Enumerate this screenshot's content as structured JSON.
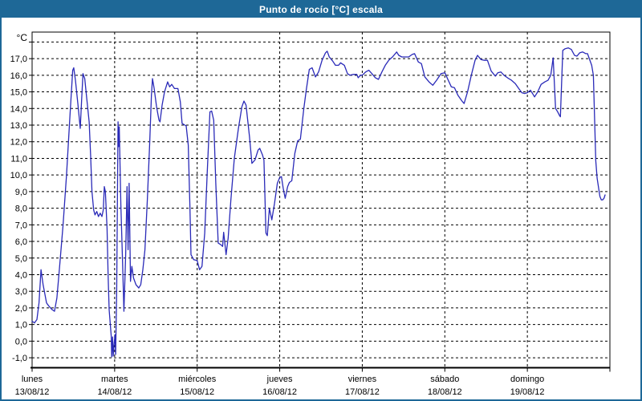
{
  "window": {
    "title": "Punto de rocío [°C] escala"
  },
  "theme": {
    "titlebar_bg": "#1e6897",
    "border_color": "#1e6897",
    "plot_bg": "#ffffff",
    "grid_color": "#000000",
    "axis_color": "#000000",
    "text_color": "#000000",
    "line_color": "#2a2ab8"
  },
  "chart_data": {
    "type": "line",
    "title": "Punto de rocío [°C] escala",
    "unit_label": "°C",
    "ylabel": "°C",
    "xlabel": "",
    "ylim": [
      -1,
      18
    ],
    "grid": "dashed",
    "legend": "none",
    "y_ticks": [
      {
        "value": 17,
        "label": "17,0"
      },
      {
        "value": 16,
        "label": "16,0"
      },
      {
        "value": 15,
        "label": "15,0"
      },
      {
        "value": 14,
        "label": "14,0"
      },
      {
        "value": 13,
        "label": "13,0"
      },
      {
        "value": 12,
        "label": "12,0"
      },
      {
        "value": 11,
        "label": "11,0"
      },
      {
        "value": 10,
        "label": "10,0"
      },
      {
        "value": 9,
        "label": "9,0"
      },
      {
        "value": 8,
        "label": "8,0"
      },
      {
        "value": 7,
        "label": "7,0"
      },
      {
        "value": 6,
        "label": "6,0"
      },
      {
        "value": 5,
        "label": "5,0"
      },
      {
        "value": 4,
        "label": "4,0"
      },
      {
        "value": 3,
        "label": "3,0"
      },
      {
        "value": 2,
        "label": "2,0"
      },
      {
        "value": 1,
        "label": "1,0"
      },
      {
        "value": 0,
        "label": "0,0"
      },
      {
        "value": -1,
        "label": "-1,0"
      }
    ],
    "x_days": [
      {
        "name": "lunes",
        "date": "13/08/12"
      },
      {
        "name": "martes",
        "date": "14/08/12"
      },
      {
        "name": "miércoles",
        "date": "15/08/12"
      },
      {
        "name": "jueves",
        "date": "16/08/12"
      },
      {
        "name": "viernes",
        "date": "17/08/12"
      },
      {
        "name": "sábado",
        "date": "18/08/12"
      },
      {
        "name": "domingo",
        "date": "19/08/12"
      }
    ],
    "x_range_hours": [
      0,
      168
    ],
    "hours_per_day": 24,
    "series": [
      {
        "name": "Punto de rocío [°C]",
        "color": "#2a2ab8",
        "points": [
          [
            0,
            1.2
          ],
          [
            0.7,
            1.1
          ],
          [
            1.4,
            1.3
          ],
          [
            2,
            2.3
          ],
          [
            2.6,
            4.3
          ],
          [
            3.2,
            3.4
          ],
          [
            4.2,
            2.3
          ],
          [
            4.9,
            2.1
          ],
          [
            5.8,
            1.9
          ],
          [
            6.5,
            1.8
          ],
          [
            7.2,
            2.6
          ],
          [
            8,
            4.5
          ],
          [
            9,
            7
          ],
          [
            10,
            10
          ],
          [
            11,
            13.5
          ],
          [
            11.8,
            16.3
          ],
          [
            12.1,
            16.45
          ],
          [
            12.6,
            15.7
          ],
          [
            13.3,
            14.3
          ],
          [
            14,
            12.8
          ],
          [
            14.4,
            14.5
          ],
          [
            14.8,
            16.1
          ],
          [
            15.3,
            15.8
          ],
          [
            15.9,
            14.6
          ],
          [
            16.6,
            13.2
          ],
          [
            17,
            11.2
          ],
          [
            17.4,
            9
          ],
          [
            17.9,
            7.9
          ],
          [
            18.3,
            7.6
          ],
          [
            18.8,
            7.8
          ],
          [
            19.3,
            7.5
          ],
          [
            19.8,
            7.7
          ],
          [
            20.3,
            7.5
          ],
          [
            20.7,
            7.9
          ],
          [
            21,
            9.3
          ],
          [
            21.3,
            9
          ],
          [
            21.8,
            6.8
          ],
          [
            22.1,
            4
          ],
          [
            22.4,
            1.9
          ],
          [
            22.7,
            1.1
          ],
          [
            23,
            0.3
          ],
          [
            23.15,
            -0.95
          ],
          [
            23.4,
            0.25
          ],
          [
            23.6,
            -0.9
          ],
          [
            23.8,
            -0.3
          ],
          [
            24.1,
            0.4
          ],
          [
            24.3,
            -0.8
          ],
          [
            24.6,
            3
          ],
          [
            25,
            13.2
          ],
          [
            25.15,
            11.7
          ],
          [
            25.35,
            12.9
          ],
          [
            25.8,
            8.2
          ],
          [
            26.3,
            4.8
          ],
          [
            26.7,
            1.8
          ],
          [
            27.2,
            5.2
          ],
          [
            27.6,
            9.3
          ],
          [
            27.9,
            5.5
          ],
          [
            28.2,
            9.5
          ],
          [
            28.6,
            3.6
          ],
          [
            29,
            4.5
          ],
          [
            29.5,
            3.8
          ],
          [
            30.2,
            3.4
          ],
          [
            31,
            3.2
          ],
          [
            31.6,
            3.4
          ],
          [
            32.2,
            4.3
          ],
          [
            32.8,
            5.5
          ],
          [
            33.5,
            8.5
          ],
          [
            34.2,
            12
          ],
          [
            34.7,
            14.8
          ],
          [
            35,
            15.8
          ],
          [
            35.5,
            15.2
          ],
          [
            36.2,
            14.1
          ],
          [
            36.9,
            13.3
          ],
          [
            37.2,
            13.2
          ],
          [
            37.8,
            14.2
          ],
          [
            38.5,
            15
          ],
          [
            39.4,
            15.6
          ],
          [
            40,
            15.3
          ],
          [
            40.6,
            15.45
          ],
          [
            41.4,
            15.2
          ],
          [
            42.4,
            15.2
          ],
          [
            43.1,
            14.4
          ],
          [
            43.6,
            13.1
          ],
          [
            44.8,
            12.95
          ],
          [
            45.4,
            11.8
          ],
          [
            45.9,
            8
          ],
          [
            46.2,
            5.2
          ],
          [
            47,
            4.9
          ],
          [
            48,
            4.85
          ],
          [
            48.7,
            4.3
          ],
          [
            49.4,
            4.5
          ],
          [
            50.2,
            6.5
          ],
          [
            50.9,
            10
          ],
          [
            51.7,
            13.8
          ],
          [
            52.2,
            13.85
          ],
          [
            52.8,
            13.3
          ],
          [
            53.4,
            9.5
          ],
          [
            54.1,
            5.9
          ],
          [
            54.9,
            5.8
          ],
          [
            55.4,
            5.7
          ],
          [
            55.7,
            6.55
          ],
          [
            56.4,
            5.2
          ],
          [
            57,
            6.2
          ],
          [
            57.8,
            8.5
          ],
          [
            58.8,
            11
          ],
          [
            60,
            12.8
          ],
          [
            61,
            14.1
          ],
          [
            61.6,
            14.45
          ],
          [
            62.2,
            14.2
          ],
          [
            63.2,
            12.3
          ],
          [
            63.9,
            10.7
          ],
          [
            64.8,
            10.9
          ],
          [
            65.7,
            11.5
          ],
          [
            66.2,
            11.6
          ],
          [
            67,
            11.2
          ],
          [
            67.4,
            10.9
          ],
          [
            68,
            6.5
          ],
          [
            68.4,
            6.35
          ],
          [
            69,
            8
          ],
          [
            69.7,
            7.3
          ],
          [
            70.5,
            8.3
          ],
          [
            71.3,
            9.5
          ],
          [
            72,
            9.85
          ],
          [
            72.5,
            9.9
          ],
          [
            73,
            9.2
          ],
          [
            73.6,
            8.6
          ],
          [
            74.3,
            9.3
          ],
          [
            74.8,
            9.55
          ],
          [
            75.5,
            9.65
          ],
          [
            76.4,
            11.3
          ],
          [
            77.2,
            12.05
          ],
          [
            78,
            12.15
          ],
          [
            79,
            14
          ],
          [
            79.7,
            15.1
          ],
          [
            80.6,
            16.35
          ],
          [
            81.4,
            16.45
          ],
          [
            82.4,
            15.9
          ],
          [
            83.3,
            16.2
          ],
          [
            84.3,
            16.9
          ],
          [
            85.3,
            17.35
          ],
          [
            85.8,
            17.45
          ],
          [
            86.4,
            17.1
          ],
          [
            87.4,
            16.85
          ],
          [
            88.2,
            16.6
          ],
          [
            89.1,
            16.6
          ],
          [
            89.7,
            16.75
          ],
          [
            90.8,
            16.6
          ],
          [
            91.7,
            16.1
          ],
          [
            92.4,
            16
          ],
          [
            93.4,
            16.05
          ],
          [
            94.4,
            16.05
          ],
          [
            94.8,
            15.85
          ],
          [
            95.5,
            16
          ],
          [
            96,
            16
          ],
          [
            97,
            16.2
          ],
          [
            97.9,
            16.3
          ],
          [
            98.8,
            16.1
          ],
          [
            99.8,
            15.85
          ],
          [
            100.7,
            15.75
          ],
          [
            101.7,
            16.2
          ],
          [
            102.7,
            16.6
          ],
          [
            103.7,
            16.9
          ],
          [
            104.8,
            17.1
          ],
          [
            106,
            17.4
          ],
          [
            106.6,
            17.2
          ],
          [
            107.5,
            17.1
          ],
          [
            108.6,
            17.1
          ],
          [
            109.5,
            17.1
          ],
          [
            110.5,
            17.25
          ],
          [
            111.2,
            17.3
          ],
          [
            112.3,
            16.8
          ],
          [
            113.2,
            16.7
          ],
          [
            114.2,
            15.9
          ],
          [
            115.4,
            15.6
          ],
          [
            116.5,
            15.4
          ],
          [
            117.6,
            15.7
          ],
          [
            118.9,
            16.1
          ],
          [
            120,
            16.15
          ],
          [
            121,
            15.7
          ],
          [
            121.9,
            15.3
          ],
          [
            122.8,
            15.25
          ],
          [
            123.8,
            14.8
          ],
          [
            125,
            14.45
          ],
          [
            125.6,
            14.3
          ],
          [
            126.6,
            15
          ],
          [
            127.7,
            16
          ],
          [
            128.8,
            16.9
          ],
          [
            129.5,
            17.2
          ],
          [
            130.5,
            16.95
          ],
          [
            131.5,
            16.9
          ],
          [
            132.4,
            16.9
          ],
          [
            133.5,
            16.25
          ],
          [
            134.7,
            15.95
          ],
          [
            135.4,
            16.15
          ],
          [
            136.3,
            16.2
          ],
          [
            137.2,
            16
          ],
          [
            138.2,
            15.85
          ],
          [
            139.4,
            15.7
          ],
          [
            140.5,
            15.5
          ],
          [
            141.5,
            15.2
          ],
          [
            142.4,
            14.95
          ],
          [
            143.2,
            14.9
          ],
          [
            144,
            14.95
          ],
          [
            144.9,
            15.1
          ],
          [
            145.5,
            14.9
          ],
          [
            146.1,
            14.7
          ],
          [
            147,
            15
          ],
          [
            148,
            15.45
          ],
          [
            149.1,
            15.6
          ],
          [
            150,
            15.7
          ],
          [
            150.8,
            16
          ],
          [
            151.5,
            17.05
          ],
          [
            152.2,
            14
          ],
          [
            152.8,
            13.8
          ],
          [
            153.3,
            13.6
          ],
          [
            153.6,
            13.5
          ],
          [
            154.3,
            17.5
          ],
          [
            155,
            17.6
          ],
          [
            155.9,
            17.65
          ],
          [
            156.8,
            17.55
          ],
          [
            157.7,
            17.2
          ],
          [
            158.4,
            17.15
          ],
          [
            159.2,
            17.35
          ],
          [
            160.1,
            17.4
          ],
          [
            161,
            17.3
          ],
          [
            161.5,
            17.3
          ],
          [
            162.7,
            16.6
          ],
          [
            163.2,
            16
          ],
          [
            163.9,
            10.85
          ],
          [
            164.3,
            9.8
          ],
          [
            164.8,
            9.1
          ],
          [
            165.1,
            8.7
          ],
          [
            165.5,
            8.5
          ],
          [
            165.9,
            8.5
          ],
          [
            166.3,
            8.6
          ],
          [
            166.6,
            8.8
          ]
        ]
      }
    ]
  }
}
